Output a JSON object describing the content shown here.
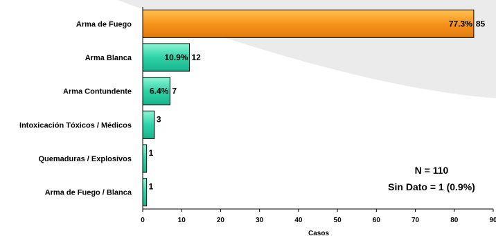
{
  "chart_data": {
    "type": "bar",
    "orientation": "horizontal",
    "categories": [
      "Arma de Fuego",
      "Arma Blanca",
      "Arma Contundente",
      "Intoxicación Tóxicos / Médicos",
      "Quemaduras / Explosivos",
      "Arma de Fuego / Blanca"
    ],
    "values": [
      85,
      12,
      7,
      3,
      1,
      1
    ],
    "percent_labels": [
      "77.3%",
      "10.9%",
      "6.4%",
      "",
      "",
      ""
    ],
    "xlabel": "Casos",
    "ylabel": "",
    "xlim": [
      0,
      90
    ],
    "xticks": [
      0,
      10,
      20,
      30,
      40,
      50,
      60,
      70,
      80,
      90
    ],
    "grid": false,
    "annotations": [
      "N = 110",
      "Sin Dato = 1 (0.9%)"
    ],
    "colors": {
      "highlight_bar": "#f7941d",
      "other_bars": "#2ed3a8",
      "background_swoosh": "#ebebeb"
    }
  }
}
